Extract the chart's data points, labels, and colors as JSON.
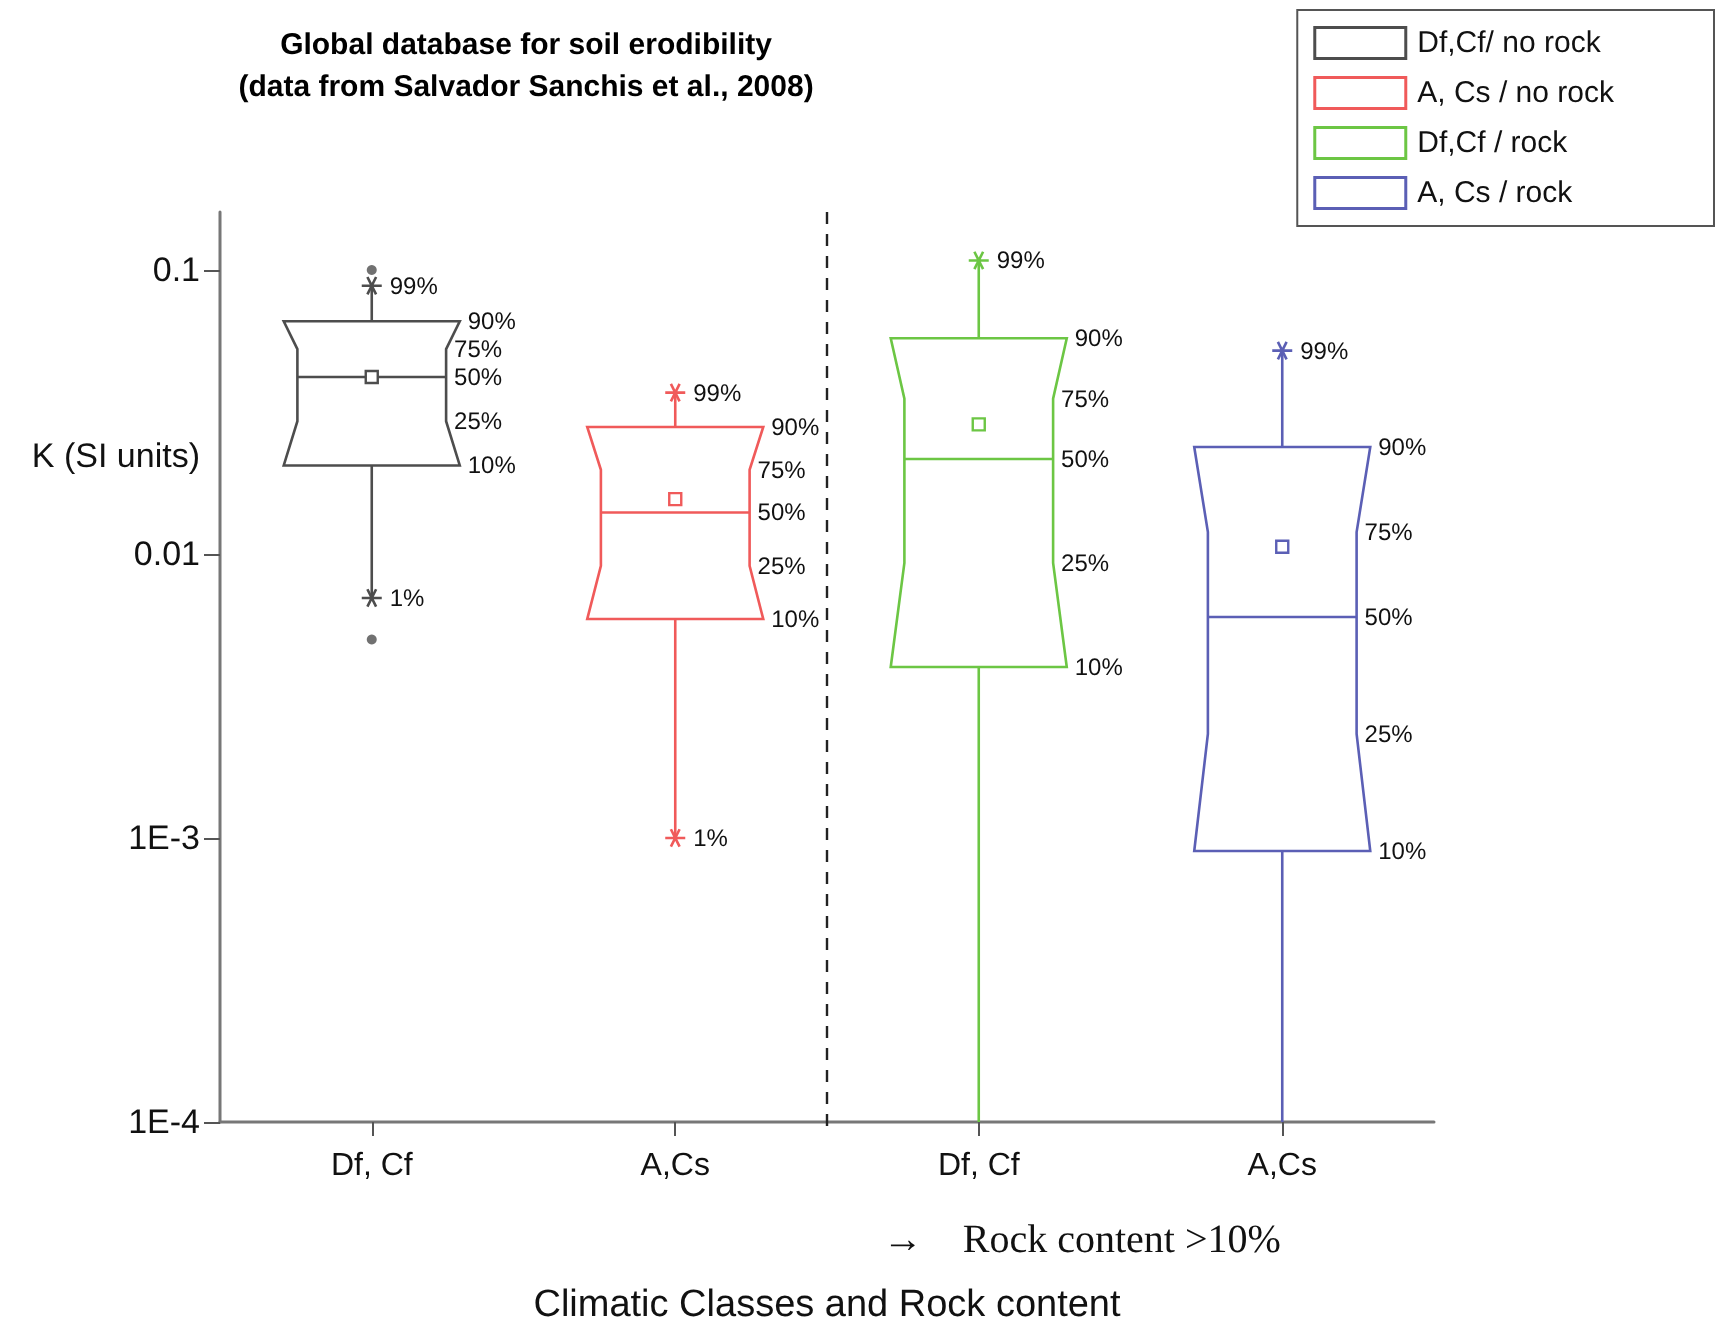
{
  "chart_data": {
    "type": "box",
    "title": "Global database for soil erodibility",
    "subtitle": "(data from Salvador Sanchis et al., 2008)",
    "xlabel": "Climatic Classes and Rock content",
    "ylabel": "K (SI units)",
    "categories": [
      "Df, Cf",
      "A,Cs",
      "Df, Cf",
      "A,Cs"
    ],
    "series": [
      {
        "name": "Df,Cf/ no rock",
        "color": "#4d4d4d",
        "boxes": [
          {
            "low": 0.007,
            "q1": 0.0205,
            "median": 0.042,
            "q3": 0.066,
            "high": 0.088,
            "mean": 0.042,
            "outliers": [
              0.005,
              0.1
            ]
          },
          null,
          null,
          null
        ]
      },
      {
        "name": "A, Cs / no rock",
        "color": "#f05a5a",
        "boxes": [
          null,
          {
            "low": 0.001,
            "q1": 0.0059,
            "median": 0.014,
            "q3": 0.028,
            "high": 0.037,
            "mean": 0.0156
          },
          null,
          null
        ]
      },
      {
        "name": "Df,Cf / rock",
        "color": "#6cc644",
        "boxes": [
          null,
          null,
          {
            "low": 0.0001,
            "q1": 0.004,
            "median": 0.0216,
            "q3": 0.0575,
            "high": 0.108,
            "mean": 0.0286
          },
          null
        ]
      },
      {
        "name": "A, Cs / rock",
        "color": "#5b5fb5",
        "boxes": [
          null,
          null,
          null,
          {
            "low": 0.0001,
            "q1": 0.0009,
            "median": 0.006,
            "q3": 0.0238,
            "high": 0.052,
            "mean": 0.0106
          }
        ]
      }
    ],
    "ylim": [
      0.0001,
      0.16
    ],
    "yticks": [
      {
        "value": 0.0001,
        "label": "1E-4"
      },
      {
        "value": 0.001,
        "label": "1E-3"
      },
      0.01,
      0.1
    ],
    "log": "y",
    "grid": false,
    "legend": "top right",
    "annotations": [
      "99%",
      "90%",
      "75%",
      "50%",
      "25%",
      "10%",
      "1%",
      "99%",
      "90%",
      "75%",
      "50%",
      "25%",
      "10%",
      "1%",
      "99%",
      "90%",
      "75%",
      "50%",
      "25%",
      "10%",
      "99%",
      "90%",
      "75%",
      "50%",
      "25%",
      "10%",
      "→    Rock content >10%"
    ]
  }
}
